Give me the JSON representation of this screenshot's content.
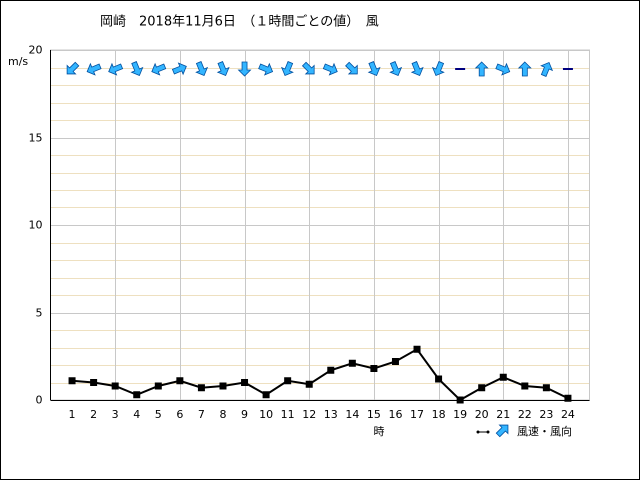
{
  "chart_data": {
    "type": "wind",
    "title": "岡崎　2018年11月6日　（１時間ごとの値）　風",
    "y_label": "m/s",
    "x_label": "時",
    "legend": "風速・風向",
    "x": [
      1,
      2,
      3,
      4,
      5,
      6,
      7,
      8,
      9,
      10,
      11,
      12,
      13,
      14,
      15,
      16,
      17,
      18,
      19,
      20,
      21,
      22,
      23,
      24
    ],
    "values": [
      1.1,
      1.0,
      0.8,
      0.3,
      0.8,
      1.1,
      0.7,
      0.8,
      1.0,
      0.3,
      1.1,
      0.9,
      1.7,
      2.1,
      1.8,
      2.2,
      2.9,
      1.2,
      0,
      0.7,
      1.3,
      0.8,
      0.7,
      0.1
    ],
    "directions": [
      225,
      247.5,
      247.5,
      157.5,
      247.5,
      67.5,
      157.5,
      157.5,
      180,
      112.5,
      202.5,
      135,
      112.5,
      135,
      157.5,
      157.5,
      157.5,
      202.5,
      null,
      0,
      112.5,
      0,
      22.5,
      null
    ],
    "color": "#000000",
    "arrow_color": "#33b5ff",
    "xlim": [
      0,
      25
    ],
    "xticks": [
      1,
      2,
      3,
      4,
      5,
      6,
      7,
      8,
      9,
      10,
      11,
      12,
      13,
      14,
      15,
      16,
      17,
      18,
      19,
      20,
      21,
      22,
      23,
      24
    ],
    "xgrid": [
      3,
      6,
      9,
      12,
      15,
      18,
      21,
      24
    ],
    "ylim": [
      0,
      20
    ],
    "yticks": [
      0,
      5,
      10,
      15,
      20
    ],
    "minor_yticks": [
      1,
      2,
      3,
      4,
      6,
      7,
      8,
      9,
      11,
      12,
      13,
      14,
      16,
      17,
      18,
      19
    ],
    "grid": true
  }
}
